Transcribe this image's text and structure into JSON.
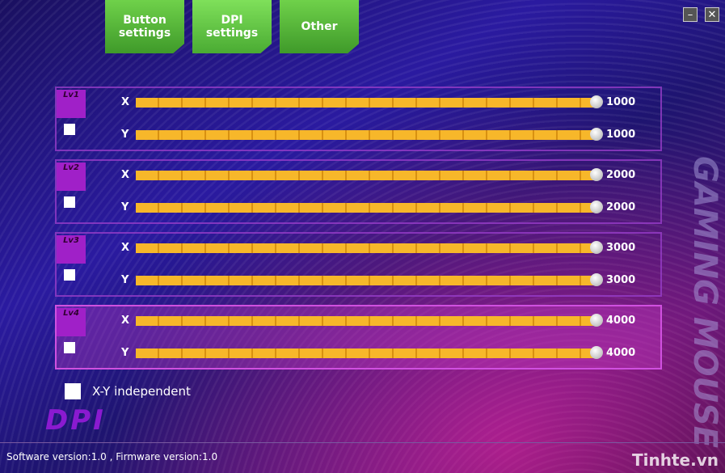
{
  "tabs": [
    {
      "label": "Button settings"
    },
    {
      "label": "DPI settings"
    },
    {
      "label": "Other"
    }
  ],
  "levels": [
    {
      "label": "Lv1",
      "axes": [
        {
          "name": "X",
          "value": 1000
        },
        {
          "name": "Y",
          "value": 1000
        }
      ]
    },
    {
      "label": "Lv2",
      "axes": [
        {
          "name": "X",
          "value": 2000
        },
        {
          "name": "Y",
          "value": 2000
        }
      ]
    },
    {
      "label": "Lv3",
      "axes": [
        {
          "name": "X",
          "value": 3000
        },
        {
          "name": "Y",
          "value": 3000
        }
      ]
    },
    {
      "label": "Lv4",
      "axes": [
        {
          "name": "X",
          "value": 4000
        },
        {
          "name": "Y",
          "value": 4000
        }
      ]
    }
  ],
  "independent": {
    "label": "X-Y independent"
  },
  "logo": "DPI",
  "side_logo": "GAMING MOUSE",
  "footer": "Software version:1.0 , Firmware version:1.0",
  "watermark": "Tinhte.vn"
}
